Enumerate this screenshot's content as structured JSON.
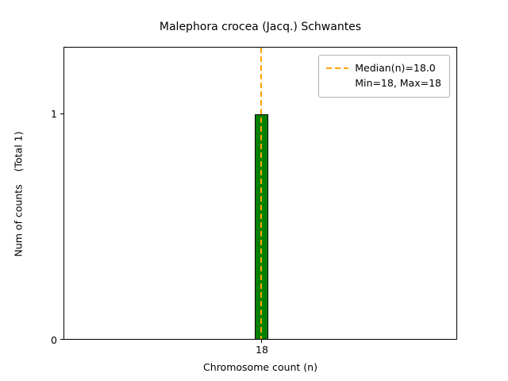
{
  "figure": {
    "title": "Malephora crocea (Jacq.) Schwantes",
    "xlabel": "Chromosome count (n)",
    "ylabel": "Num of counts    (Total 1)",
    "yticks": [
      "0",
      "1"
    ],
    "xticks": [
      "18"
    ],
    "legend": {
      "line1": "Median(n)=18.0",
      "line2": "Min=18, Max=18"
    },
    "colors": {
      "bar_fill": "#007f00",
      "bar_edge": "#000000",
      "median_line": "#ffa500",
      "axis": "#000000",
      "background": "#ffffff"
    }
  },
  "chart_data": {
    "type": "bar",
    "title": "Malephora crocea (Jacq.) Schwantes",
    "xlabel": "Chromosome count (n)",
    "ylabel": "Num of counts    (Total 1)",
    "categories": [
      18
    ],
    "values": [
      1
    ],
    "total_counts": 1,
    "median_n": 18.0,
    "min_n": 18,
    "max_n": 18,
    "ylim": [
      0,
      1.295
    ],
    "yticks": [
      0,
      1
    ],
    "xticks": [
      18
    ],
    "grid": false,
    "legend_position": "upper right",
    "annotations": [
      "Median(n)=18.0",
      "Min=18, Max=18"
    ],
    "marker_lines": [
      {
        "type": "vline",
        "x": 18,
        "style": "dashed",
        "color": "#ffa500",
        "label": "Median(n)=18.0\nMin=18, Max=18"
      }
    ]
  }
}
